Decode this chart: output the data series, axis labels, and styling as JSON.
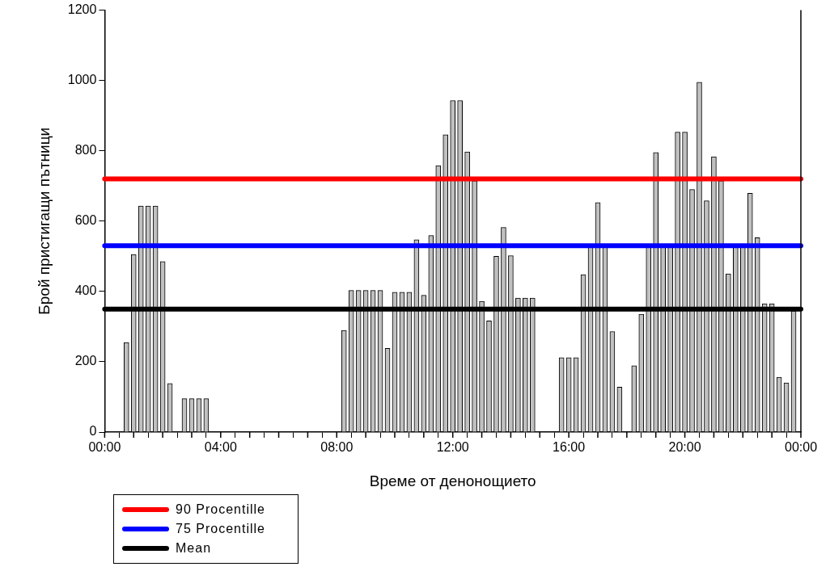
{
  "chart_data": {
    "type": "bar",
    "xlabel": "Време от денонощието",
    "ylabel": "Брой пристигащи пътници",
    "color": "#c0c0c0",
    "x": [
      0.75,
      1,
      1.25,
      1.5,
      1.75,
      2,
      2.25,
      2.75,
      3,
      3.25,
      3.5,
      8.25,
      8.5,
      8.75,
      9,
      9.25,
      9.5,
      9.75,
      10,
      10.25,
      10.5,
      10.75,
      11,
      11.25,
      11.5,
      11.75,
      12,
      12.25,
      12.5,
      12.75,
      13,
      13.25,
      13.5,
      13.75,
      14,
      14.25,
      14.5,
      14.75,
      15.75,
      16,
      16.25,
      16.5,
      16.75,
      17,
      17.25,
      17.5,
      17.75,
      18.25,
      18.5,
      18.75,
      19,
      19.25,
      19.5,
      19.75,
      20,
      20.25,
      20.5,
      20.75,
      21,
      21.25,
      21.5,
      21.75,
      22,
      22.25,
      22.5,
      22.75,
      23,
      23.25,
      23.5,
      23.75
    ],
    "values": [
      255,
      505,
      643,
      643,
      643,
      485,
      138,
      95,
      95,
      95,
      95,
      289,
      403,
      403,
      403,
      403,
      403,
      238,
      398,
      398,
      398,
      547,
      389,
      559,
      758,
      846,
      943,
      943,
      797,
      715,
      372,
      316,
      500,
      582,
      502,
      381,
      381,
      381,
      212,
      212,
      212,
      448,
      525,
      653,
      525,
      286,
      128,
      189,
      335,
      525,
      795,
      525,
      525,
      853,
      853,
      690,
      995,
      658,
      783,
      715,
      450,
      525,
      525,
      679,
      553,
      365,
      365,
      156,
      140,
      345
    ],
    "xlim": [
      0,
      24
    ],
    "xticks": [
      {
        "value": 0,
        "label": "00:00"
      },
      {
        "value": 1,
        "label": null
      },
      {
        "value": 2,
        "label": null
      },
      {
        "value": 3,
        "label": null
      },
      {
        "value": 4,
        "label": "04:00"
      },
      {
        "value": 5,
        "label": null
      },
      {
        "value": 6,
        "label": null
      },
      {
        "value": 7,
        "label": null
      },
      {
        "value": 8,
        "label": "08:00"
      },
      {
        "value": 9,
        "label": null
      },
      {
        "value": 10,
        "label": null
      },
      {
        "value": 11,
        "label": null
      },
      {
        "value": 12,
        "label": "12:00"
      },
      {
        "value": 13,
        "label": null
      },
      {
        "value": 14,
        "label": null
      },
      {
        "value": 15,
        "label": null
      },
      {
        "value": 16,
        "label": "16:00"
      },
      {
        "value": 17,
        "label": null
      },
      {
        "value": 18,
        "label": null
      },
      {
        "value": 19,
        "label": null
      },
      {
        "value": 20,
        "label": "20:00"
      },
      {
        "value": 21,
        "label": null
      },
      {
        "value": 22,
        "label": null
      },
      {
        "value": 23,
        "label": null
      },
      {
        "value": 24,
        "label": "00:00"
      }
    ],
    "ylim": [
      0,
      1200
    ],
    "yticks": [
      0,
      200,
      400,
      600,
      800,
      1000,
      1200
    ],
    "ref_lines": [
      {
        "axis": "y",
        "value": 720,
        "label": "90 Procentille",
        "color": "#ff0000"
      },
      {
        "axis": "y",
        "value": 530,
        "label": "75 Procentille",
        "color": "#0000ff"
      },
      {
        "axis": "y",
        "value": 350,
        "label": "Mean",
        "color": "#000000"
      }
    ],
    "grid": false,
    "legend": "bottom left"
  }
}
